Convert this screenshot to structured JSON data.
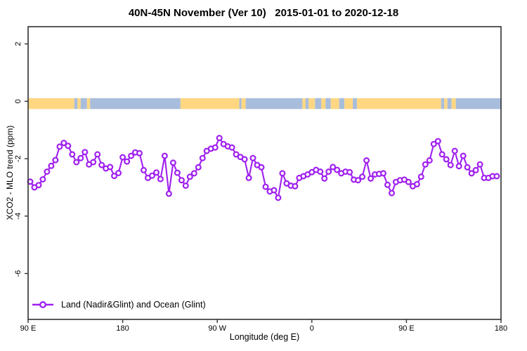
{
  "chart_data": {
    "type": "line",
    "title": "40N-45N November (Ver 10)   2015-01-01 to 2020-12-18",
    "xlabel": "Longitude (deg E)",
    "ylabel": "XCO2 - MLO trend (ppm)",
    "xlim": [
      90,
      540
    ],
    "ylim": [
      -7.6,
      2.6
    ],
    "grid": false,
    "x_ticks": [
      {
        "pos": 90,
        "label": "90 E"
      },
      {
        "pos": 180,
        "label": "180"
      },
      {
        "pos": 270,
        "label": "90 W"
      },
      {
        "pos": 360,
        "label": "0"
      },
      {
        "pos": 450,
        "label": "90 E"
      },
      {
        "pos": 540,
        "label": "180"
      }
    ],
    "y_ticks": [
      {
        "pos": 2,
        "label": "2"
      },
      {
        "pos": 0,
        "label": "0"
      },
      {
        "pos": -2,
        "label": "-2"
      },
      {
        "pos": -4,
        "label": "-4"
      },
      {
        "pos": -6,
        "label": "-6"
      }
    ],
    "legend": {
      "position": "bottom-left",
      "label": "Land (Nadir&Glint) and Ocean (Glint)"
    },
    "series": [
      {
        "name": "Land (Nadir&Glint) and Ocean (Glint)",
        "color": "#A020F0",
        "marker": "open-circle",
        "x": [
          92,
          96,
          100,
          104,
          108,
          112,
          116,
          120,
          124,
          128,
          132,
          136,
          140,
          144,
          148,
          152,
          156,
          160,
          164,
          168,
          172,
          176,
          180,
          184,
          188,
          192,
          196,
          200,
          204,
          208,
          212,
          216,
          220,
          224,
          228,
          232,
          236,
          240,
          244,
          248,
          252,
          256,
          260,
          264,
          268,
          272,
          276,
          280,
          284,
          288,
          292,
          296,
          300,
          304,
          308,
          312,
          316,
          320,
          324,
          328,
          332,
          336,
          340,
          344,
          348,
          352,
          356,
          360,
          364,
          368,
          372,
          376,
          380,
          384,
          388,
          392,
          396,
          400,
          404,
          408,
          412,
          416,
          420,
          424,
          428,
          432,
          436,
          440,
          444,
          448,
          452,
          456,
          460,
          464,
          468,
          472,
          476,
          480,
          484,
          488,
          492,
          496,
          500,
          504,
          508,
          512,
          516,
          520,
          524,
          528,
          532,
          536
        ],
        "values": [
          -2.8,
          -3.0,
          -2.92,
          -2.72,
          -2.45,
          -2.25,
          -2.05,
          -1.58,
          -1.45,
          -1.55,
          -1.85,
          -2.12,
          -1.98,
          -1.77,
          -2.2,
          -2.12,
          -1.85,
          -2.22,
          -2.34,
          -2.29,
          -2.6,
          -2.5,
          -1.95,
          -2.1,
          -1.9,
          -1.78,
          -1.81,
          -2.4,
          -2.67,
          -2.59,
          -2.48,
          -2.71,
          -1.9,
          -3.22,
          -2.14,
          -2.49,
          -2.75,
          -2.94,
          -2.63,
          -2.51,
          -2.3,
          -1.98,
          -1.73,
          -1.65,
          -1.61,
          -1.28,
          -1.49,
          -1.57,
          -1.61,
          -1.85,
          -1.94,
          -2.02,
          -2.67,
          -1.98,
          -2.22,
          -2.3,
          -2.98,
          -3.14,
          -3.1,
          -3.36,
          -2.51,
          -2.86,
          -2.94,
          -2.96,
          -2.67,
          -2.61,
          -2.55,
          -2.47,
          -2.39,
          -2.45,
          -2.69,
          -2.45,
          -2.29,
          -2.39,
          -2.51,
          -2.45,
          -2.47,
          -2.73,
          -2.75,
          -2.63,
          -2.06,
          -2.69,
          -2.55,
          -2.53,
          -2.51,
          -2.91,
          -3.2,
          -2.81,
          -2.75,
          -2.73,
          -2.81,
          -2.96,
          -2.89,
          -2.63,
          -2.2,
          -2.06,
          -1.49,
          -1.39,
          -1.85,
          -2.02,
          -2.22,
          -1.73,
          -2.26,
          -1.9,
          -2.3,
          -2.51,
          -2.4,
          -2.2,
          -2.67,
          -2.67,
          -2.61,
          -2.61
        ]
      }
    ],
    "map_band": {
      "y_value": 0,
      "land_color": "#FFD782",
      "ocean_color": "#A8BDDB",
      "segments": [
        {
          "from": 90,
          "to": 134,
          "type": "land"
        },
        {
          "from": 134,
          "to": 137,
          "type": "ocean"
        },
        {
          "from": 137,
          "to": 140,
          "type": "land"
        },
        {
          "from": 140,
          "to": 146,
          "type": "ocean"
        },
        {
          "from": 146,
          "to": 149,
          "type": "land"
        },
        {
          "from": 149,
          "to": 235,
          "type": "ocean"
        },
        {
          "from": 235,
          "to": 291,
          "type": "land"
        },
        {
          "from": 291,
          "to": 293,
          "type": "ocean"
        },
        {
          "from": 293,
          "to": 297,
          "type": "land"
        },
        {
          "from": 297,
          "to": 351,
          "type": "ocean"
        },
        {
          "from": 351,
          "to": 354,
          "type": "land"
        },
        {
          "from": 354,
          "to": 357,
          "type": "ocean"
        },
        {
          "from": 357,
          "to": 363,
          "type": "land"
        },
        {
          "from": 363,
          "to": 369,
          "type": "ocean"
        },
        {
          "from": 369,
          "to": 373,
          "type": "land"
        },
        {
          "from": 373,
          "to": 378,
          "type": "ocean"
        },
        {
          "from": 378,
          "to": 386,
          "type": "land"
        },
        {
          "from": 386,
          "to": 391,
          "type": "ocean"
        },
        {
          "from": 391,
          "to": 399,
          "type": "land"
        },
        {
          "from": 399,
          "to": 403,
          "type": "ocean"
        },
        {
          "from": 403,
          "to": 483,
          "type": "land"
        },
        {
          "from": 483,
          "to": 486,
          "type": "ocean"
        },
        {
          "from": 486,
          "to": 489,
          "type": "land"
        },
        {
          "from": 489,
          "to": 493,
          "type": "ocean"
        },
        {
          "from": 493,
          "to": 497,
          "type": "land"
        },
        {
          "from": 497,
          "to": 540,
          "type": "ocean"
        }
      ]
    }
  },
  "colors": {
    "series": "#A020F0",
    "land": "#FFD782",
    "ocean": "#A8BDDB",
    "axis": "#303030",
    "text": "#000000"
  }
}
